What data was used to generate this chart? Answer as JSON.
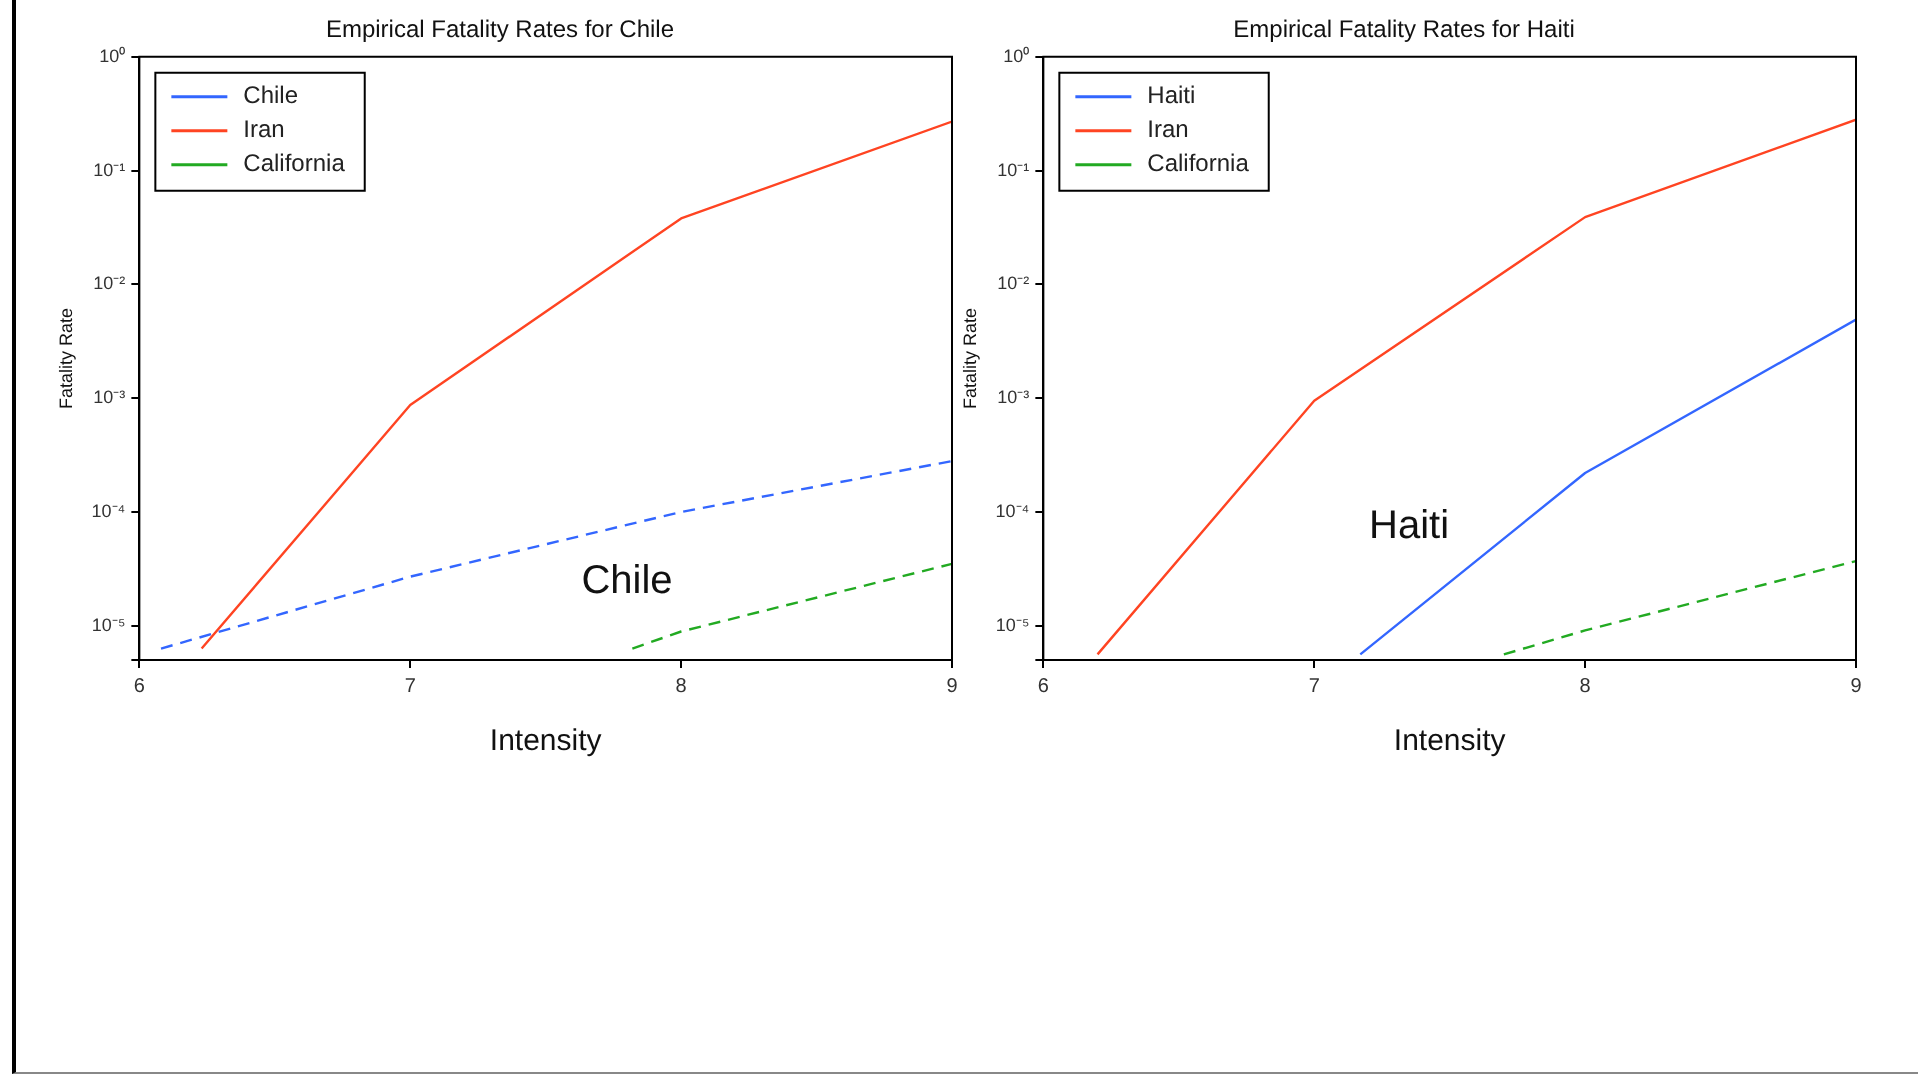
{
  "chart_data": [
    {
      "type": "line",
      "title": "Empirical Fatality Rates for Chile",
      "xlabel": "Intensity",
      "ylabel": "Fatality Rate",
      "legend": "top left",
      "grid": false,
      "log": "y",
      "xlim": [
        6,
        9
      ],
      "xticks": [
        6,
        7,
        8,
        9
      ],
      "ylim": [
        5e-06,
        1
      ],
      "yticks": [
        {
          "value": 1,
          "label": "10⁰"
        },
        {
          "value": 0.1,
          "label": "10⁻¹"
        },
        {
          "value": 0.01,
          "label": "10⁻²"
        },
        {
          "value": 0.001,
          "label": "10⁻³"
        },
        {
          "value": 0.0001,
          "label": "10⁻⁴"
        },
        {
          "value": 1e-05,
          "label": "10⁻⁵"
        },
        {
          "value": 5e-06,
          "label": null
        }
      ],
      "annotations": [
        "Chile"
      ],
      "series": [
        {
          "name": "Chile",
          "color": "#3366ff",
          "line_style": "dashed",
          "x": [
            6.08,
            7,
            8,
            9
          ],
          "values": [
            6.3e-06,
            2.7e-05,
            0.0001,
            0.00028
          ]
        },
        {
          "name": "Iran",
          "color": "#ff4422",
          "line_style": "solid",
          "x": [
            6.23,
            7,
            8,
            9
          ],
          "values": [
            6.3e-06,
            0.00087,
            0.038,
            0.27
          ]
        },
        {
          "name": "California",
          "color": "#22aa22",
          "line_style": "dashed",
          "x": [
            7.82,
            8,
            9
          ],
          "values": [
            6.3e-06,
            8.9e-06,
            3.5e-05
          ]
        }
      ]
    },
    {
      "type": "line",
      "title": "Empirical Fatality Rates for Haiti",
      "xlabel": "Intensity",
      "ylabel": "Fatality Rate",
      "legend": "top left",
      "grid": false,
      "log": "y",
      "xlim": [
        6,
        9
      ],
      "xticks": [
        6,
        7,
        8,
        9
      ],
      "ylim": [
        5e-06,
        1
      ],
      "yticks": [
        {
          "value": 1,
          "label": "10⁰"
        },
        {
          "value": 0.1,
          "label": "10⁻¹"
        },
        {
          "value": 0.01,
          "label": "10⁻²"
        },
        {
          "value": 0.001,
          "label": "10⁻³"
        },
        {
          "value": 0.0001,
          "label": "10⁻⁴"
        },
        {
          "value": 1e-05,
          "label": "10⁻⁵"
        },
        {
          "value": 5e-06,
          "label": null
        }
      ],
      "annotations": [
        "Haiti"
      ],
      "series": [
        {
          "name": "Haiti",
          "color": "#3366ff",
          "line_style": "solid",
          "x": [
            7.17,
            8,
            9
          ],
          "values": [
            5.6e-06,
            0.00022,
            0.0049
          ]
        },
        {
          "name": "Iran",
          "color": "#ff4422",
          "line_style": "solid",
          "x": [
            6.2,
            7,
            8,
            9
          ],
          "values": [
            5.6e-06,
            0.00095,
            0.039,
            0.28
          ]
        },
        {
          "name": "California",
          "color": "#22aa22",
          "line_style": "dashed",
          "x": [
            7.7,
            8,
            9
          ],
          "values": [
            5.6e-06,
            9.1e-06,
            3.7e-05
          ]
        }
      ]
    }
  ]
}
